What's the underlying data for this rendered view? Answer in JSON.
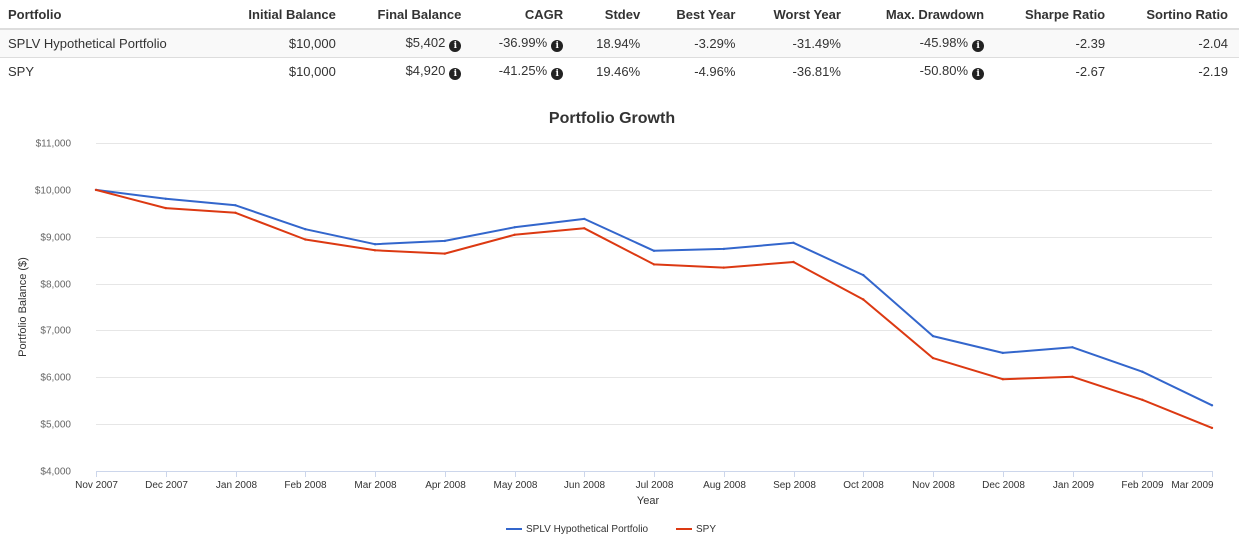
{
  "table": {
    "headers": [
      "Portfolio",
      "Initial Balance",
      "Final Balance",
      "CAGR",
      "Stdev",
      "Best Year",
      "Worst Year",
      "Max. Drawdown",
      "Sharpe Ratio",
      "Sortino Ratio"
    ],
    "rows": [
      [
        "SPLV Hypothetical Portfolio",
        "$10,000",
        "$5,402",
        "-36.99%",
        "18.94%",
        "-3.29%",
        "-31.49%",
        "-45.98%",
        "-2.39",
        "-2.04"
      ],
      [
        "SPY",
        "$10,000",
        "$4,920",
        "-41.25%",
        "19.46%",
        "-4.96%",
        "-36.81%",
        "-50.80%",
        "-2.67",
        "-2.19"
      ]
    ],
    "info_icon": "info-circle-icon"
  },
  "chart_data": {
    "type": "line",
    "title": "Portfolio Growth",
    "xlabel": "Year",
    "ylabel": "Portfolio Balance ($)",
    "categories": [
      "Nov 2007",
      "Dec 2007",
      "Jan 2008",
      "Feb 2008",
      "Mar 2008",
      "Apr 2008",
      "May 2008",
      "Jun 2008",
      "Jul 2008",
      "Aug 2008",
      "Sep 2008",
      "Oct 2008",
      "Nov 2008",
      "Dec 2008",
      "Jan 2009",
      "Feb 2009",
      "Mar 2009"
    ],
    "yticks": [
      "$4,000",
      "$5,000",
      "$6,000",
      "$7,000",
      "$8,000",
      "$9,000",
      "$10,000",
      "$11,000"
    ],
    "ylim": [
      4000,
      11000
    ],
    "grid": true,
    "legend_position": "bottom-center",
    "series": [
      {
        "name": "SPLV Hypothetical Portfolio",
        "color": "#3366cc",
        "values": [
          10000,
          9810,
          9670,
          9160,
          8840,
          8910,
          9200,
          9380,
          8700,
          8740,
          8870,
          8180,
          6880,
          6520,
          6640,
          6120,
          5402
        ]
      },
      {
        "name": "SPY",
        "color": "#dc3912",
        "values": [
          10000,
          9610,
          9510,
          8940,
          8710,
          8640,
          9040,
          9180,
          8410,
          8340,
          8460,
          7660,
          6410,
          5960,
          6010,
          5520,
          4920
        ]
      }
    ]
  }
}
